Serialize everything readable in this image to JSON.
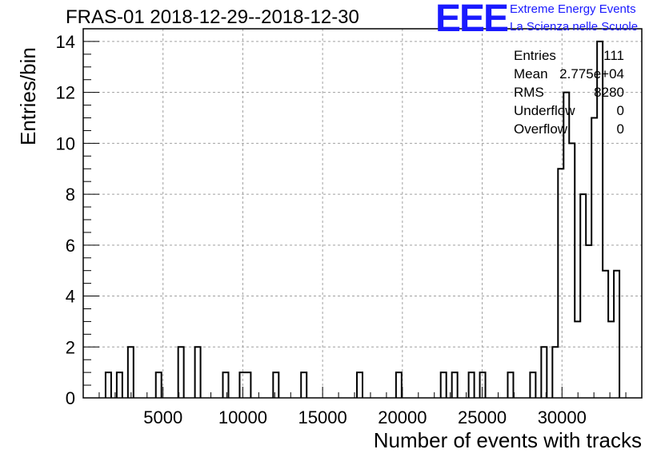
{
  "title": "FRAS-01 2018-12-29--2018-12-30",
  "logo": {
    "mark": "EEE",
    "line1": "Extreme Energy Events",
    "line2": "La Scienza nelle Scuole",
    "color": "#1a1aff"
  },
  "stats": [
    {
      "key": "Entries",
      "value": "111"
    },
    {
      "key": "Mean",
      "value": "2.775e+04"
    },
    {
      "key": "RMS",
      "value": "8280"
    },
    {
      "key": "Underflow",
      "value": "0"
    },
    {
      "key": "Overflow",
      "value": "0"
    }
  ],
  "chart_data": {
    "type": "bar",
    "title": "FRAS-01 2018-12-29--2018-12-30",
    "xlabel": "Number of events with tracks",
    "ylabel": "Entries/bin",
    "xlim": [
      0,
      35000
    ],
    "ylim": [
      0,
      14.5
    ],
    "grid": true,
    "xticks": [
      5000,
      10000,
      15000,
      20000,
      25000,
      30000
    ],
    "yticks": [
      0,
      2,
      4,
      6,
      8,
      10,
      12,
      14
    ],
    "bin_width": 350,
    "bins": [
      {
        "x": 1400,
        "y": 1
      },
      {
        "x": 2100,
        "y": 1
      },
      {
        "x": 2800,
        "y": 2
      },
      {
        "x": 4550,
        "y": 1
      },
      {
        "x": 5950,
        "y": 2
      },
      {
        "x": 7000,
        "y": 2
      },
      {
        "x": 8750,
        "y": 1
      },
      {
        "x": 9800,
        "y": 1
      },
      {
        "x": 10150,
        "y": 1
      },
      {
        "x": 11900,
        "y": 1
      },
      {
        "x": 13650,
        "y": 1
      },
      {
        "x": 17150,
        "y": 1
      },
      {
        "x": 19600,
        "y": 1
      },
      {
        "x": 22400,
        "y": 1
      },
      {
        "x": 23100,
        "y": 1
      },
      {
        "x": 24150,
        "y": 1
      },
      {
        "x": 24850,
        "y": 1
      },
      {
        "x": 26600,
        "y": 1
      },
      {
        "x": 28000,
        "y": 1
      },
      {
        "x": 28700,
        "y": 2
      },
      {
        "x": 29400,
        "y": 2
      },
      {
        "x": 29750,
        "y": 9
      },
      {
        "x": 30100,
        "y": 12
      },
      {
        "x": 30450,
        "y": 10
      },
      {
        "x": 30800,
        "y": 3
      },
      {
        "x": 31150,
        "y": 8
      },
      {
        "x": 31500,
        "y": 6
      },
      {
        "x": 31850,
        "y": 11
      },
      {
        "x": 32200,
        "y": 14
      },
      {
        "x": 32550,
        "y": 5
      },
      {
        "x": 32900,
        "y": 3
      },
      {
        "x": 33250,
        "y": 5
      }
    ],
    "stats_legend_position": "top-right"
  }
}
